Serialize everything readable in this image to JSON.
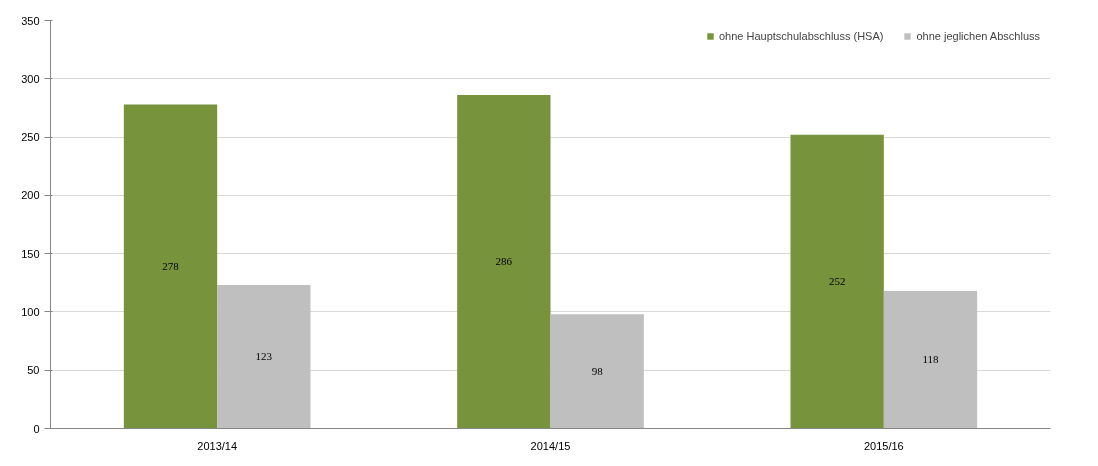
{
  "chart_data": {
    "type": "bar",
    "categories": [
      "2013/14",
      "2014/15",
      "2015/16"
    ],
    "series": [
      {
        "name": "ohne Hauptschulabschluss (HSA)",
        "color": "#77933c",
        "values": [
          278,
          286,
          252
        ]
      },
      {
        "name": "ohne jeglichen Abschluss",
        "color": "#bfbfbf",
        "values": [
          123,
          98,
          118
        ]
      }
    ],
    "ylim": [
      0,
      350
    ],
    "yticks": [
      0,
      50,
      100,
      150,
      200,
      250,
      300,
      350
    ],
    "grid": "y",
    "legend": "top right",
    "data_labels": true
  }
}
